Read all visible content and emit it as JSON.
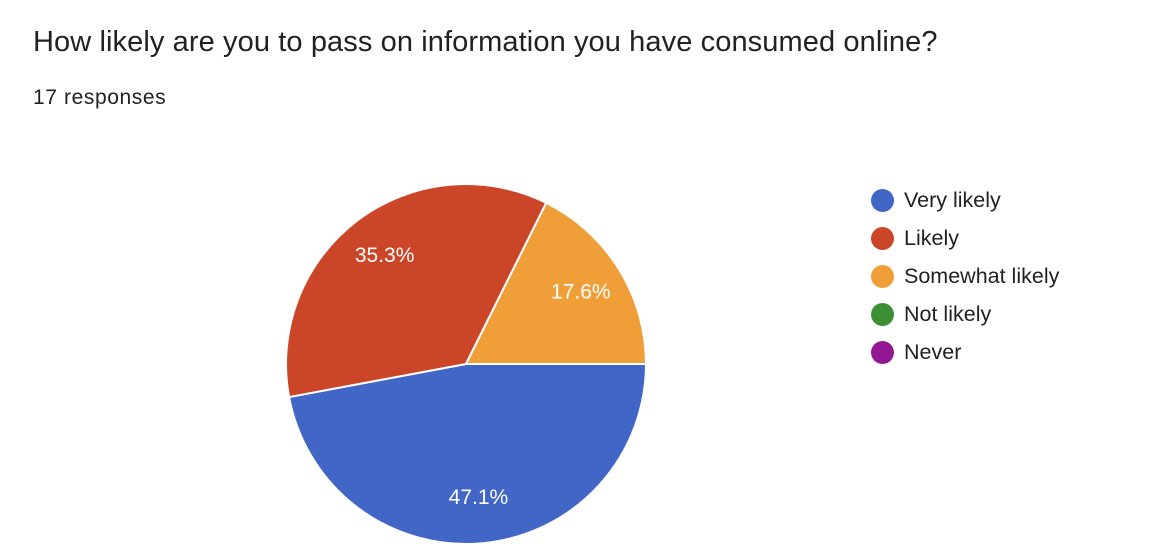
{
  "question": {
    "title": "How likely are you to pass on information you have consumed online?",
    "responses_text": "17 responses"
  },
  "chart_data": {
    "type": "pie",
    "title": "How likely are you to pass on information you have consumed online?",
    "slices": [
      {
        "label": "Very likely",
        "value": 8,
        "percent_label": "47.1%",
        "color": "#4266C6"
      },
      {
        "label": "Likely",
        "value": 6,
        "percent_label": "35.3%",
        "color": "#CB4628"
      },
      {
        "label": "Somewhat likely",
        "value": 3,
        "percent_label": "17.6%",
        "color": "#F09E38"
      },
      {
        "label": "Not likely",
        "value": 0,
        "percent_label": "",
        "color": "#3A9033"
      },
      {
        "label": "Never",
        "value": 0,
        "percent_label": "",
        "color": "#931793"
      }
    ],
    "legend_position": "right"
  }
}
